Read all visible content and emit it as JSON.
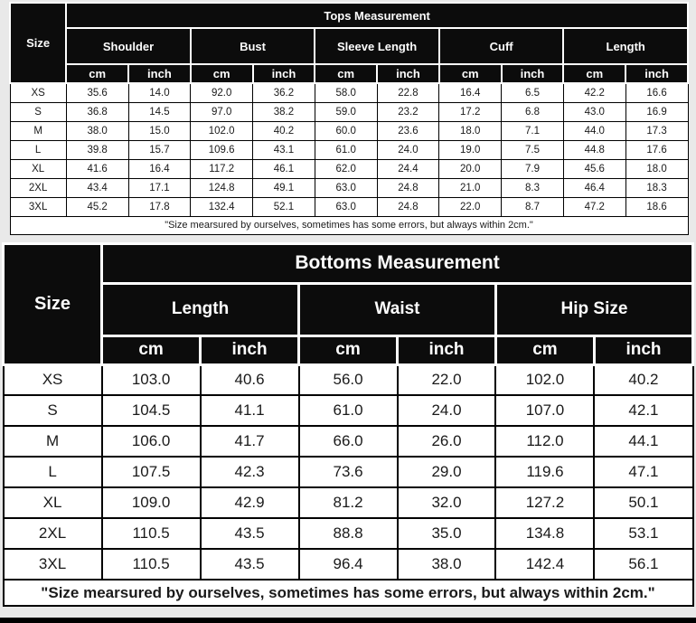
{
  "colors": {
    "header_bg": "#0c0c0c",
    "header_text": "#ffffff",
    "cell_bg": "#ffffff",
    "cell_text": "#1a1a1a",
    "border": "#000000",
    "page_bg": "#e9e9e9"
  },
  "chart_data": [
    {
      "type": "table",
      "title": "Tops Measurement",
      "size_header": "Size",
      "groups": [
        "Shoulder",
        "Bust",
        "Sleeve Length",
        "Cuff",
        "Length"
      ],
      "units": [
        "cm",
        "inch",
        "cm",
        "inch",
        "cm",
        "inch",
        "cm",
        "inch",
        "cm",
        "inch"
      ],
      "rows": [
        {
          "size": "XS",
          "values": [
            "35.6",
            "14.0",
            "92.0",
            "36.2",
            "58.0",
            "22.8",
            "16.4",
            "6.5",
            "42.2",
            "16.6"
          ]
        },
        {
          "size": "S",
          "values": [
            "36.8",
            "14.5",
            "97.0",
            "38.2",
            "59.0",
            "23.2",
            "17.2",
            "6.8",
            "43.0",
            "16.9"
          ]
        },
        {
          "size": "M",
          "values": [
            "38.0",
            "15.0",
            "102.0",
            "40.2",
            "60.0",
            "23.6",
            "18.0",
            "7.1",
            "44.0",
            "17.3"
          ]
        },
        {
          "size": "L",
          "values": [
            "39.8",
            "15.7",
            "109.6",
            "43.1",
            "61.0",
            "24.0",
            "19.0",
            "7.5",
            "44.8",
            "17.6"
          ]
        },
        {
          "size": "XL",
          "values": [
            "41.6",
            "16.4",
            "117.2",
            "46.1",
            "62.0",
            "24.4",
            "20.0",
            "7.9",
            "45.6",
            "18.0"
          ]
        },
        {
          "size": "2XL",
          "values": [
            "43.4",
            "17.1",
            "124.8",
            "49.1",
            "63.0",
            "24.8",
            "21.0",
            "8.3",
            "46.4",
            "18.3"
          ]
        },
        {
          "size": "3XL",
          "values": [
            "45.2",
            "17.8",
            "132.4",
            "52.1",
            "63.0",
            "24.8",
            "22.0",
            "8.7",
            "47.2",
            "18.6"
          ]
        }
      ],
      "note": "\"Size mearsured by ourselves, sometimes has some errors, but always within 2cm.\""
    },
    {
      "type": "table",
      "title": "Bottoms Measurement",
      "size_header": "Size",
      "groups": [
        "Length",
        "Waist",
        "Hip Size"
      ],
      "units": [
        "cm",
        "inch",
        "cm",
        "inch",
        "cm",
        "inch"
      ],
      "rows": [
        {
          "size": "XS",
          "values": [
            "103.0",
            "40.6",
            "56.0",
            "22.0",
            "102.0",
            "40.2"
          ]
        },
        {
          "size": "S",
          "values": [
            "104.5",
            "41.1",
            "61.0",
            "24.0",
            "107.0",
            "42.1"
          ]
        },
        {
          "size": "M",
          "values": [
            "106.0",
            "41.7",
            "66.0",
            "26.0",
            "112.0",
            "44.1"
          ]
        },
        {
          "size": "L",
          "values": [
            "107.5",
            "42.3",
            "73.6",
            "29.0",
            "119.6",
            "47.1"
          ]
        },
        {
          "size": "XL",
          "values": [
            "109.0",
            "42.9",
            "81.2",
            "32.0",
            "127.2",
            "50.1"
          ]
        },
        {
          "size": "2XL",
          "values": [
            "110.5",
            "43.5",
            "88.8",
            "35.0",
            "134.8",
            "53.1"
          ]
        },
        {
          "size": "3XL",
          "values": [
            "110.5",
            "43.5",
            "96.4",
            "38.0",
            "142.4",
            "56.1"
          ]
        }
      ],
      "note": "\"Size mearsured by ourselves, sometimes has some errors, but always within 2cm.\""
    }
  ]
}
